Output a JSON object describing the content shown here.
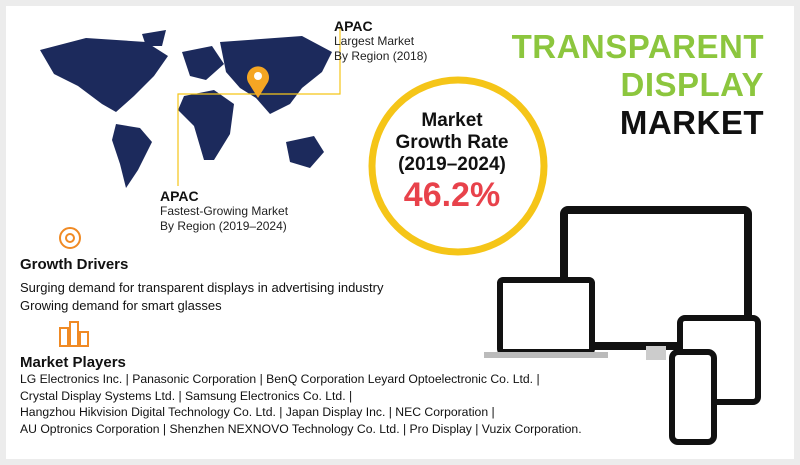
{
  "title": {
    "line1": "TRANSPARENT",
    "line2": "DISPLAY",
    "line3": "MARKET"
  },
  "map": {
    "largest": {
      "region": "APAC",
      "label": "Largest Market",
      "period": "By Region (2018)"
    },
    "fastest": {
      "region": "APAC",
      "label": "Fastest-Growing Market",
      "period": "By Region (2019–2024)"
    }
  },
  "growth_rate": {
    "label": [
      "Market",
      "Growth Rate",
      "(2019–2024)"
    ],
    "value": "46.2%"
  },
  "growth_drivers": {
    "heading": "Growth Drivers",
    "items": [
      "Surging demand for transparent displays in advertising industry",
      "Growing demand for smart glasses"
    ]
  },
  "market_players": {
    "heading": "Market Players",
    "lines": [
      "LG Electronics Inc. | Panasonic Corporation | BenQ Corporation Leyard Optoelectronic Co. Ltd. |",
      "Crystal Display Systems Ltd. | Samsung Electronics Co. Ltd. |",
      "Hangzhou Hikvision Digital Technology Co. Ltd. | Japan Display Inc. | NEC Corporation |",
      "AU Optronics Corporation | Shenzhen NEXNOVO Technology Co. Ltd. | Pro Display | Vuzix Corporation."
    ]
  }
}
